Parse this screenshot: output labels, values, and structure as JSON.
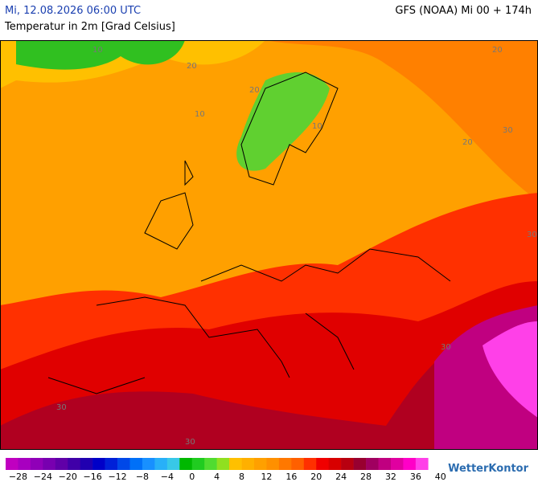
{
  "header": {
    "datetime": "Mi, 12.08.2026 06:00 UTC",
    "model": "GFS (NOAA) Mi 00 + 174h",
    "subtitle": "Temperatur in 2m [Grad Celsius]"
  },
  "map": {
    "contour_labels": [
      "10",
      "10",
      "10",
      "20",
      "20",
      "20",
      "20",
      "30",
      "30",
      "30",
      "30",
      "30"
    ]
  },
  "legend": {
    "colors": [
      "#c000c0",
      "#a800c0",
      "#9000b8",
      "#7800b0",
      "#6000a8",
      "#4000a8",
      "#2000b0",
      "#0000c8",
      "#0020d8",
      "#0048e8",
      "#0070f8",
      "#1890ff",
      "#28b0f8",
      "#38c8e8",
      "#00b800",
      "#20cc20",
      "#50dc30",
      "#90e020",
      "#ffc000",
      "#ffb000",
      "#ffa000",
      "#ff9000",
      "#ff7800",
      "#ff6000",
      "#ff3000",
      "#f00000",
      "#d80000",
      "#b80010",
      "#980030",
      "#a00060",
      "#c00080",
      "#e000a0",
      "#ff00c8",
      "#ff40e8"
    ],
    "labels": [
      "−28",
      "−24",
      "−20",
      "−16",
      "−12",
      "−8",
      "−4",
      "0",
      "4",
      "8",
      "12",
      "16",
      "20",
      "24",
      "28",
      "32",
      "36",
      "40"
    ]
  },
  "brand": "WetterKontor"
}
